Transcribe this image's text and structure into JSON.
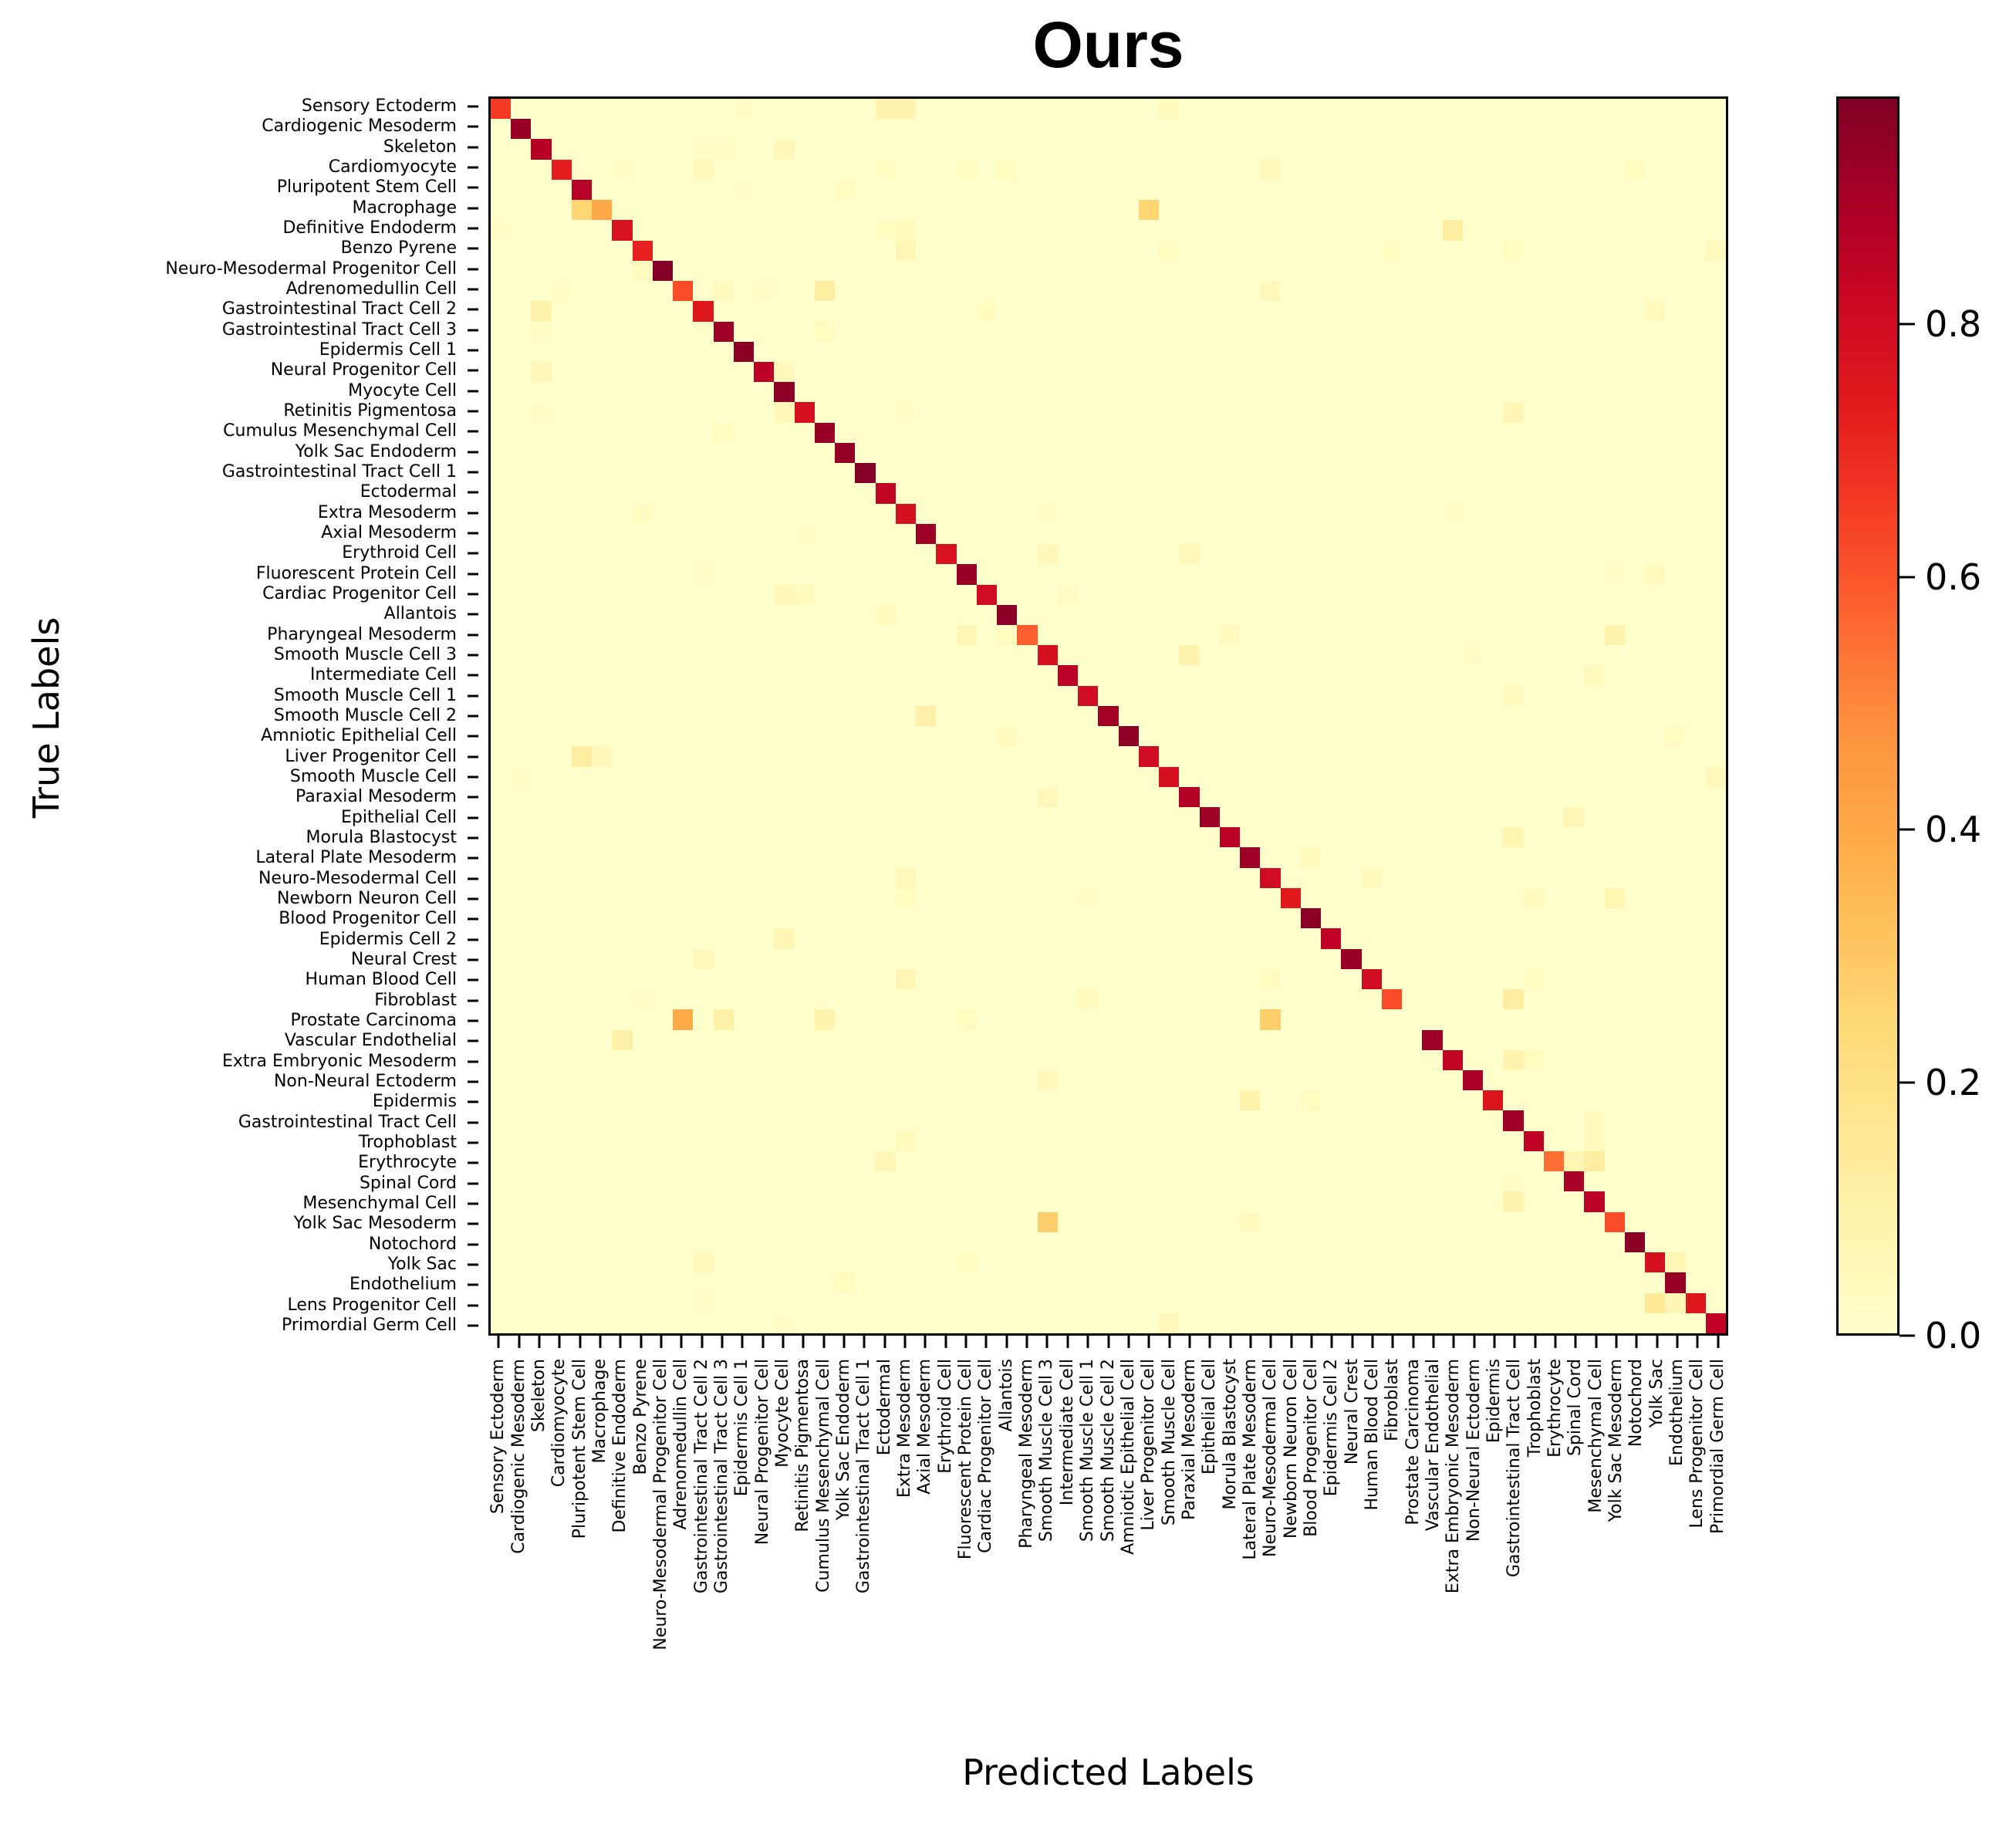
{
  "title": "Ours",
  "xlabel": "Predicted Labels",
  "ylabel": "True Labels",
  "colorbar": {
    "colormap": "YlOrRd",
    "vmin": 0.0,
    "vmax": 0.98,
    "ticks": [
      0.0,
      0.2,
      0.4,
      0.6,
      0.8
    ],
    "tick_labels": [
      "0.0",
      "0.2",
      "0.4",
      "0.6",
      "0.8"
    ]
  },
  "chart_data": {
    "type": "heatmap",
    "title": "Ours",
    "xlabel": "Predicted Labels",
    "ylabel": "True Labels",
    "grid": false,
    "legend_position": "right colorbar",
    "value_range": [
      0.0,
      0.98
    ],
    "labels": [
      "Sensory Ectoderm",
      "Cardiogenic Mesoderm",
      "Skeleton",
      "Cardiomyocyte",
      "Pluripotent Stem Cell",
      "Macrophage",
      "Definitive Endoderm",
      "Benzo Pyrene",
      "Neuro-Mesodermal Progenitor Cell",
      "Adrenomedullin Cell",
      "Gastrointestinal Tract Cell 2",
      "Gastrointestinal Tract Cell 3",
      "Epidermis Cell 1",
      "Neural Progenitor Cell",
      "Myocyte Cell",
      "Retinitis Pigmentosa",
      "Cumulus Mesenchymal Cell",
      "Yolk Sac Endoderm",
      "Gastrointestinal Tract Cell 1",
      "Ectodermal",
      "Extra Mesoderm",
      "Axial Mesoderm",
      "Erythroid Cell",
      "Fluorescent Protein Cell",
      "Cardiac Progenitor Cell",
      "Allantois",
      "Pharyngeal Mesoderm",
      "Smooth Muscle Cell 3",
      "Intermediate Cell",
      "Smooth Muscle Cell 1",
      "Smooth Muscle Cell 2",
      "Amniotic Epithelial Cell",
      "Liver Progenitor Cell",
      "Smooth Muscle Cell",
      "Paraxial Mesoderm",
      "Epithelial Cell",
      "Morula Blastocyst",
      "Lateral Plate Mesoderm",
      "Neuro-Mesodermal Cell",
      "Newborn Neuron Cell",
      "Blood Progenitor Cell",
      "Epidermis Cell 2",
      "Neural Crest",
      "Human Blood Cell",
      "Fibroblast",
      "Prostate Carcinoma",
      "Vascular Endothelial",
      "Extra Embryonic Mesoderm",
      "Non-Neural Ectoderm",
      "Epidermis",
      "Gastrointestinal Tract Cell",
      "Trophoblast",
      "Erythrocyte",
      "Spinal Cord",
      "Mesenchymal Cell",
      "Yolk Sac Mesoderm",
      "Notochord",
      "Yolk Sac",
      "Endothelium",
      "Lens Progenitor Cell",
      "Primordial Germ Cell"
    ],
    "diagonal": [
      0.66,
      0.93,
      0.87,
      0.73,
      0.87,
      0.4,
      0.77,
      0.72,
      0.97,
      0.62,
      0.75,
      0.92,
      0.96,
      0.86,
      0.95,
      0.78,
      0.93,
      0.94,
      0.97,
      0.84,
      0.78,
      0.92,
      0.77,
      0.93,
      0.8,
      0.96,
      0.58,
      0.78,
      0.86,
      0.8,
      0.91,
      0.95,
      0.8,
      0.78,
      0.88,
      0.92,
      0.86,
      0.92,
      0.8,
      0.74,
      0.96,
      0.85,
      0.93,
      0.8,
      0.62,
      0.0,
      0.92,
      0.84,
      0.89,
      0.76,
      0.92,
      0.85,
      0.55,
      0.9,
      0.86,
      0.62,
      0.96,
      0.78,
      0.93,
      0.75,
      0.85
    ],
    "off_diagonal": [
      {
        "row": 0,
        "col": 19,
        "value": 0.08
      },
      {
        "row": 0,
        "col": 20,
        "value": 0.08
      },
      {
        "row": 0,
        "col": 33,
        "value": 0.04
      },
      {
        "row": 0,
        "col": 12,
        "value": 0.02
      },
      {
        "row": 2,
        "col": 14,
        "value": 0.05
      },
      {
        "row": 2,
        "col": 10,
        "value": 0.02
      },
      {
        "row": 2,
        "col": 11,
        "value": 0.02
      },
      {
        "row": 3,
        "col": 10,
        "value": 0.05
      },
      {
        "row": 3,
        "col": 6,
        "value": 0.02
      },
      {
        "row": 3,
        "col": 19,
        "value": 0.03
      },
      {
        "row": 3,
        "col": 23,
        "value": 0.03
      },
      {
        "row": 3,
        "col": 25,
        "value": 0.03
      },
      {
        "row": 3,
        "col": 38,
        "value": 0.05
      },
      {
        "row": 3,
        "col": 56,
        "value": 0.03
      },
      {
        "row": 4,
        "col": 17,
        "value": 0.03
      },
      {
        "row": 4,
        "col": 12,
        "value": 0.01
      },
      {
        "row": 5,
        "col": 4,
        "value": 0.25
      },
      {
        "row": 5,
        "col": 32,
        "value": 0.25
      },
      {
        "row": 6,
        "col": 19,
        "value": 0.03
      },
      {
        "row": 6,
        "col": 20,
        "value": 0.04
      },
      {
        "row": 6,
        "col": 47,
        "value": 0.12
      },
      {
        "row": 6,
        "col": 0,
        "value": 0.02
      },
      {
        "row": 7,
        "col": 20,
        "value": 0.06
      },
      {
        "row": 7,
        "col": 33,
        "value": 0.03
      },
      {
        "row": 7,
        "col": 44,
        "value": 0.03
      },
      {
        "row": 7,
        "col": 50,
        "value": 0.03
      },
      {
        "row": 7,
        "col": 60,
        "value": 0.04
      },
      {
        "row": 8,
        "col": 7,
        "value": 0.03
      },
      {
        "row": 9,
        "col": 16,
        "value": 0.12
      },
      {
        "row": 9,
        "col": 3,
        "value": 0.02
      },
      {
        "row": 9,
        "col": 11,
        "value": 0.04
      },
      {
        "row": 9,
        "col": 13,
        "value": 0.02
      },
      {
        "row": 9,
        "col": 38,
        "value": 0.05
      },
      {
        "row": 10,
        "col": 2,
        "value": 0.09
      },
      {
        "row": 10,
        "col": 24,
        "value": 0.03
      },
      {
        "row": 10,
        "col": 57,
        "value": 0.04
      },
      {
        "row": 11,
        "col": 2,
        "value": 0.02
      },
      {
        "row": 11,
        "col": 16,
        "value": 0.03
      },
      {
        "row": 13,
        "col": 2,
        "value": 0.05
      },
      {
        "row": 13,
        "col": 14,
        "value": 0.05
      },
      {
        "row": 15,
        "col": 14,
        "value": 0.05
      },
      {
        "row": 15,
        "col": 2,
        "value": 0.02
      },
      {
        "row": 15,
        "col": 50,
        "value": 0.06
      },
      {
        "row": 15,
        "col": 20,
        "value": 0.02
      },
      {
        "row": 16,
        "col": 11,
        "value": 0.03
      },
      {
        "row": 20,
        "col": 7,
        "value": 0.03
      },
      {
        "row": 20,
        "col": 27,
        "value": 0.02
      },
      {
        "row": 20,
        "col": 47,
        "value": 0.02
      },
      {
        "row": 21,
        "col": 15,
        "value": 0.02
      },
      {
        "row": 22,
        "col": 27,
        "value": 0.05
      },
      {
        "row": 22,
        "col": 34,
        "value": 0.05
      },
      {
        "row": 23,
        "col": 10,
        "value": 0.02
      },
      {
        "row": 23,
        "col": 55,
        "value": 0.02
      },
      {
        "row": 23,
        "col": 57,
        "value": 0.04
      },
      {
        "row": 24,
        "col": 14,
        "value": 0.05
      },
      {
        "row": 24,
        "col": 15,
        "value": 0.04
      },
      {
        "row": 24,
        "col": 28,
        "value": 0.02
      },
      {
        "row": 25,
        "col": 19,
        "value": 0.04
      },
      {
        "row": 26,
        "col": 23,
        "value": 0.06
      },
      {
        "row": 26,
        "col": 25,
        "value": 0.03
      },
      {
        "row": 26,
        "col": 36,
        "value": 0.04
      },
      {
        "row": 26,
        "col": 55,
        "value": 0.09
      },
      {
        "row": 27,
        "col": 34,
        "value": 0.08
      },
      {
        "row": 27,
        "col": 48,
        "value": 0.02
      },
      {
        "row": 28,
        "col": 54,
        "value": 0.04
      },
      {
        "row": 29,
        "col": 50,
        "value": 0.04
      },
      {
        "row": 30,
        "col": 21,
        "value": 0.1
      },
      {
        "row": 31,
        "col": 25,
        "value": 0.04
      },
      {
        "row": 31,
        "col": 58,
        "value": 0.03
      },
      {
        "row": 32,
        "col": 4,
        "value": 0.12
      },
      {
        "row": 32,
        "col": 5,
        "value": 0.05
      },
      {
        "row": 33,
        "col": 60,
        "value": 0.05
      },
      {
        "row": 33,
        "col": 1,
        "value": 0.02
      },
      {
        "row": 34,
        "col": 27,
        "value": 0.05
      },
      {
        "row": 35,
        "col": 53,
        "value": 0.06
      },
      {
        "row": 36,
        "col": 50,
        "value": 0.07
      },
      {
        "row": 37,
        "col": 40,
        "value": 0.04
      },
      {
        "row": 38,
        "col": 20,
        "value": 0.05
      },
      {
        "row": 38,
        "col": 43,
        "value": 0.04
      },
      {
        "row": 39,
        "col": 20,
        "value": 0.03
      },
      {
        "row": 39,
        "col": 29,
        "value": 0.02
      },
      {
        "row": 39,
        "col": 51,
        "value": 0.04
      },
      {
        "row": 39,
        "col": 55,
        "value": 0.07
      },
      {
        "row": 41,
        "col": 14,
        "value": 0.06
      },
      {
        "row": 42,
        "col": 10,
        "value": 0.05
      },
      {
        "row": 43,
        "col": 20,
        "value": 0.06
      },
      {
        "row": 43,
        "col": 38,
        "value": 0.03
      },
      {
        "row": 43,
        "col": 51,
        "value": 0.03
      },
      {
        "row": 44,
        "col": 50,
        "value": 0.12
      },
      {
        "row": 44,
        "col": 29,
        "value": 0.04
      },
      {
        "row": 44,
        "col": 7,
        "value": 0.02
      },
      {
        "row": 45,
        "col": 9,
        "value": 0.39
      },
      {
        "row": 45,
        "col": 11,
        "value": 0.1
      },
      {
        "row": 45,
        "col": 16,
        "value": 0.08
      },
      {
        "row": 45,
        "col": 38,
        "value": 0.28
      },
      {
        "row": 45,
        "col": 23,
        "value": 0.03
      },
      {
        "row": 46,
        "col": 6,
        "value": 0.1
      },
      {
        "row": 47,
        "col": 50,
        "value": 0.08
      },
      {
        "row": 47,
        "col": 51,
        "value": 0.03
      },
      {
        "row": 48,
        "col": 27,
        "value": 0.05
      },
      {
        "row": 49,
        "col": 37,
        "value": 0.09
      },
      {
        "row": 49,
        "col": 40,
        "value": 0.03
      },
      {
        "row": 50,
        "col": 54,
        "value": 0.04
      },
      {
        "row": 51,
        "col": 20,
        "value": 0.04
      },
      {
        "row": 51,
        "col": 54,
        "value": 0.04
      },
      {
        "row": 52,
        "col": 19,
        "value": 0.06
      },
      {
        "row": 52,
        "col": 53,
        "value": 0.07
      },
      {
        "row": 52,
        "col": 54,
        "value": 0.12
      },
      {
        "row": 53,
        "col": 50,
        "value": 0.02
      },
      {
        "row": 54,
        "col": 50,
        "value": 0.08
      },
      {
        "row": 55,
        "col": 27,
        "value": 0.28
      },
      {
        "row": 55,
        "col": 37,
        "value": 0.04
      },
      {
        "row": 57,
        "col": 10,
        "value": 0.05
      },
      {
        "row": 57,
        "col": 23,
        "value": 0.03
      },
      {
        "row": 57,
        "col": 58,
        "value": 0.06
      },
      {
        "row": 58,
        "col": 17,
        "value": 0.03
      },
      {
        "row": 59,
        "col": 57,
        "value": 0.15
      },
      {
        "row": 59,
        "col": 58,
        "value": 0.06
      },
      {
        "row": 59,
        "col": 10,
        "value": 0.02
      },
      {
        "row": 60,
        "col": 33,
        "value": 0.05
      },
      {
        "row": 60,
        "col": 14,
        "value": 0.02
      }
    ]
  }
}
